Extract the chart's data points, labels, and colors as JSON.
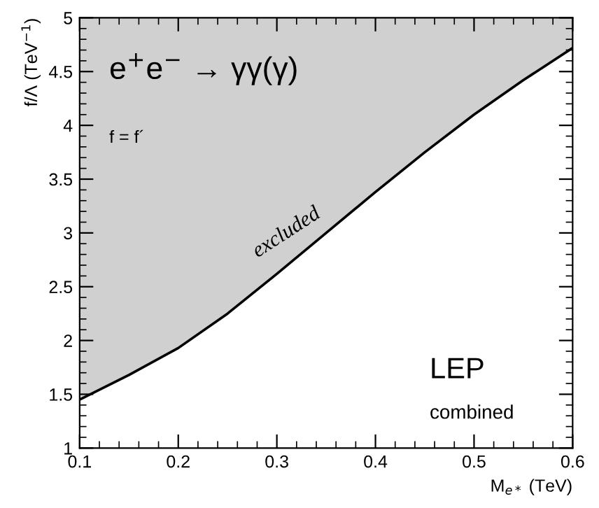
{
  "chart_data": {
    "type": "line",
    "xlabel": "M$_{e*}$ (TeV)",
    "ylabel": "f/Λ (TeV$^{−1}$)",
    "x": [
      0.1,
      0.15,
      0.2,
      0.25,
      0.3,
      0.35,
      0.4,
      0.45,
      0.5,
      0.55,
      0.6
    ],
    "series": [
      {
        "color": "#000000",
        "values": [
          1.45,
          1.68,
          1.93,
          2.25,
          2.62,
          3.0,
          3.38,
          3.75,
          4.1,
          4.42,
          4.72
        ],
        "lower": [
          1.45,
          1.68,
          1.93,
          2.25,
          2.62,
          3.0,
          3.38,
          3.75,
          4.1,
          4.42,
          4.72
        ],
        "upper": [
          5,
          5,
          5,
          5,
          5,
          5,
          5,
          5,
          5,
          5,
          5
        ]
      }
    ],
    "xlim": [
      0.1,
      0.6
    ],
    "ylim": [
      1,
      5
    ],
    "xticks": [
      0.1,
      0.2,
      0.3,
      0.4,
      0.5,
      0.6
    ],
    "yticks": [
      1,
      1.5,
      2,
      2.5,
      3,
      3.5,
      4,
      4.5,
      5
    ],
    "annotations": [
      "excluded",
      "e$^{+}$e$^{−}$ → γγ(γ)",
      "f = f´",
      "LEP",
      "combined"
    ]
  }
}
